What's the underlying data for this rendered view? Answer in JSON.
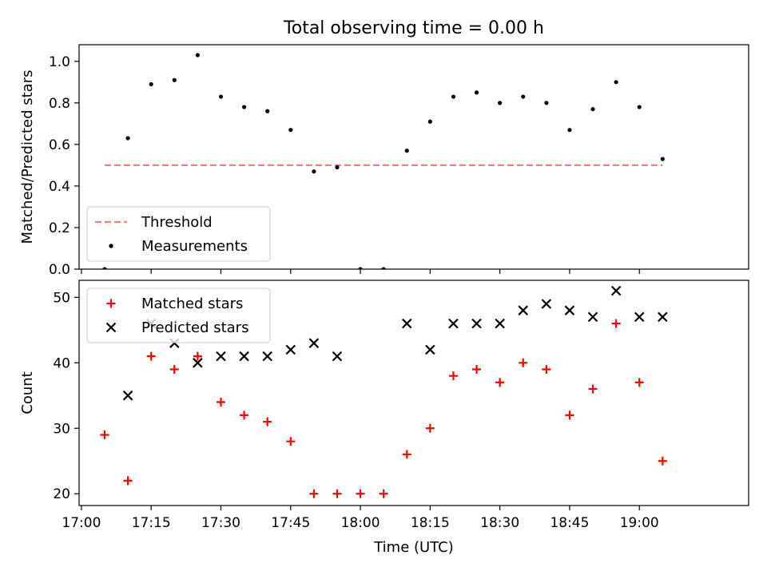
{
  "figure": {
    "title": "Total observing time = 0.00 h",
    "xlabel": "Time (UTC)"
  },
  "chart_data": [
    {
      "type": "scatter",
      "title": "Total observing time = 0.00 h",
      "ylabel": "Matched/Predicted stars",
      "xlabel": "",
      "xlim": [
        "16:59:30",
        "19:23:30"
      ],
      "ylim": [
        0.0,
        1.08
      ],
      "xticks": [
        "17:00",
        "17:15",
        "17:30",
        "17:45",
        "18:00",
        "18:15",
        "18:30",
        "18:45",
        "19:00"
      ],
      "xtick_labels_visible": false,
      "yticks": [
        0.0,
        0.2,
        0.4,
        0.6,
        0.8,
        1.0
      ],
      "ytick_labels": [
        "0.0",
        "0.2",
        "0.4",
        "0.6",
        "0.8",
        "1.0"
      ],
      "legend_position": "lower-left",
      "threshold": {
        "name": "Threshold",
        "value": 0.5,
        "x_range": [
          "17:05",
          "19:05"
        ],
        "color": "#f08080",
        "style": "dashed"
      },
      "series": [
        {
          "name": "Measurements",
          "marker": "dot",
          "color": "#000000",
          "x": [
            "17:05",
            "17:10",
            "17:15",
            "17:20",
            "17:25",
            "17:30",
            "17:35",
            "17:40",
            "17:45",
            "17:50",
            "17:55",
            "18:00",
            "18:05",
            "18:10",
            "18:15",
            "18:20",
            "18:25",
            "18:30",
            "18:35",
            "18:40",
            "18:45",
            "18:50",
            "18:55",
            "19:00",
            "19:05"
          ],
          "y": [
            0.0,
            0.63,
            0.89,
            0.91,
            1.03,
            0.83,
            0.78,
            0.76,
            0.67,
            0.47,
            0.49,
            0.0,
            0.0,
            0.57,
            0.71,
            0.83,
            0.85,
            0.8,
            0.83,
            0.8,
            0.67,
            0.77,
            0.9,
            0.78,
            0.53
          ]
        }
      ]
    },
    {
      "type": "scatter",
      "title": "",
      "ylabel": "Count",
      "xlabel": "Time (UTC)",
      "xlim": [
        "16:59:30",
        "19:23:30"
      ],
      "ylim": [
        18.2,
        52.6
      ],
      "xticks": [
        "17:00",
        "17:15",
        "17:30",
        "17:45",
        "18:00",
        "18:15",
        "18:30",
        "18:45",
        "19:00"
      ],
      "xtick_labels": [
        "17:00",
        "17:15",
        "17:30",
        "17:45",
        "18:00",
        "18:15",
        "18:30",
        "18:45",
        "19:00"
      ],
      "yticks": [
        20,
        30,
        40,
        50
      ],
      "ytick_labels": [
        "20",
        "30",
        "40",
        "50"
      ],
      "legend_position": "upper-left",
      "series": [
        {
          "name": "Matched stars",
          "marker": "plus",
          "color": "#ff0000",
          "x": [
            "17:05",
            "17:10",
            "17:15",
            "17:20",
            "17:25",
            "17:30",
            "17:35",
            "17:40",
            "17:45",
            "17:50",
            "17:55",
            "18:00",
            "18:05",
            "18:10",
            "18:15",
            "18:20",
            "18:25",
            "18:30",
            "18:35",
            "18:40",
            "18:45",
            "18:50",
            "18:55",
            "19:00",
            "19:05"
          ],
          "y": [
            29,
            22,
            41,
            39,
            41,
            34,
            32,
            31,
            28,
            20,
            20,
            20,
            20,
            26,
            30,
            38,
            39,
            37,
            40,
            39,
            32,
            36,
            46,
            37,
            25
          ]
        },
        {
          "name": "Predicted stars",
          "marker": "x",
          "color": "#000000",
          "x": [
            "17:05",
            "17:10",
            "17:15",
            "17:20",
            "17:25",
            "17:30",
            "17:35",
            "17:40",
            "17:45",
            "17:50",
            "17:55",
            "18:00",
            "18:05",
            "18:10",
            "18:15",
            "18:20",
            "18:25",
            "18:30",
            "18:35",
            "18:40",
            "18:45",
            "18:50",
            "18:55",
            "19:00",
            "19:05"
          ],
          "y": [
            null,
            35,
            46,
            43,
            40,
            41,
            41,
            41,
            42,
            43,
            41,
            null,
            null,
            46,
            42,
            46,
            46,
            46,
            48,
            49,
            48,
            47,
            51,
            47,
            47
          ]
        }
      ]
    }
  ]
}
